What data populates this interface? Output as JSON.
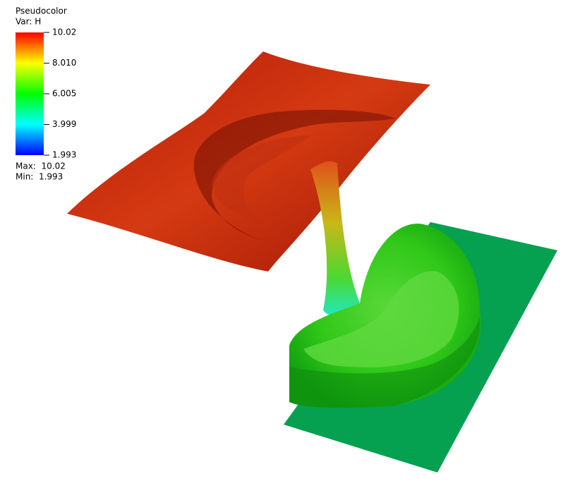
{
  "legend": {
    "title": "Pseudocolor",
    "variable": "Var: H",
    "ticks": [
      {
        "value": 10.02,
        "label": "10.02"
      },
      {
        "value": 8.01,
        "label": "8.010"
      },
      {
        "value": 6.005,
        "label": "6.005"
      },
      {
        "value": 3.999,
        "label": "3.999"
      },
      {
        "value": 1.993,
        "label": "1.993"
      }
    ],
    "max": "Max:  10.02",
    "min": "Min:  1.993"
  }
}
